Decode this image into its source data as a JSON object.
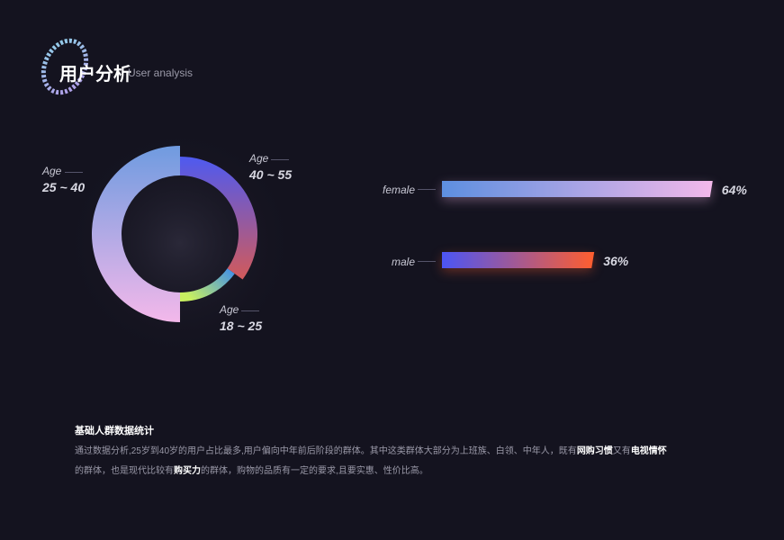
{
  "header": {
    "title": "用户分析",
    "subtitle": "User analysis",
    "logo_text": "IRE TV MALL"
  },
  "chart_data": [
    {
      "type": "pie",
      "variant": "donut",
      "categories": [
        "25 ~ 40",
        "40 ~ 55",
        "18 ~ 25"
      ],
      "label_prefix": "Age",
      "values": [
        50,
        35,
        15
      ],
      "colors": [
        [
          "#6f9be0",
          "#f3b8ea"
        ],
        [
          "#4e5af0",
          "#d25a5a"
        ],
        [
          "#3b8cf0",
          "#c8f060"
        ]
      ]
    },
    {
      "type": "bar",
      "orientation": "horizontal",
      "categories": [
        "female",
        "male"
      ],
      "values": [
        64,
        36
      ],
      "value_labels": [
        "64%",
        "36%"
      ],
      "colors": [
        [
          "#5d8fe0",
          "#f3b8ea"
        ],
        [
          "#4b55f5",
          "#ff5e2e"
        ]
      ]
    }
  ],
  "description": {
    "title": "基础人群数据统计",
    "line1_a": "通过数据分析,25岁到40岁的用户占比最多,用户偏向中年前后阶段的群体。其中这类群体大部分为上班族、白领、中年人，既有",
    "line1_b": "网购习惯",
    "line1_c": "又有",
    "line1_d": "电视情怀",
    "line2_a": "的群体，也是现代比较有",
    "line2_b": "购买力",
    "line2_c": "的群体，购物的品质有一定的要求,且要实惠、性价比高。"
  }
}
